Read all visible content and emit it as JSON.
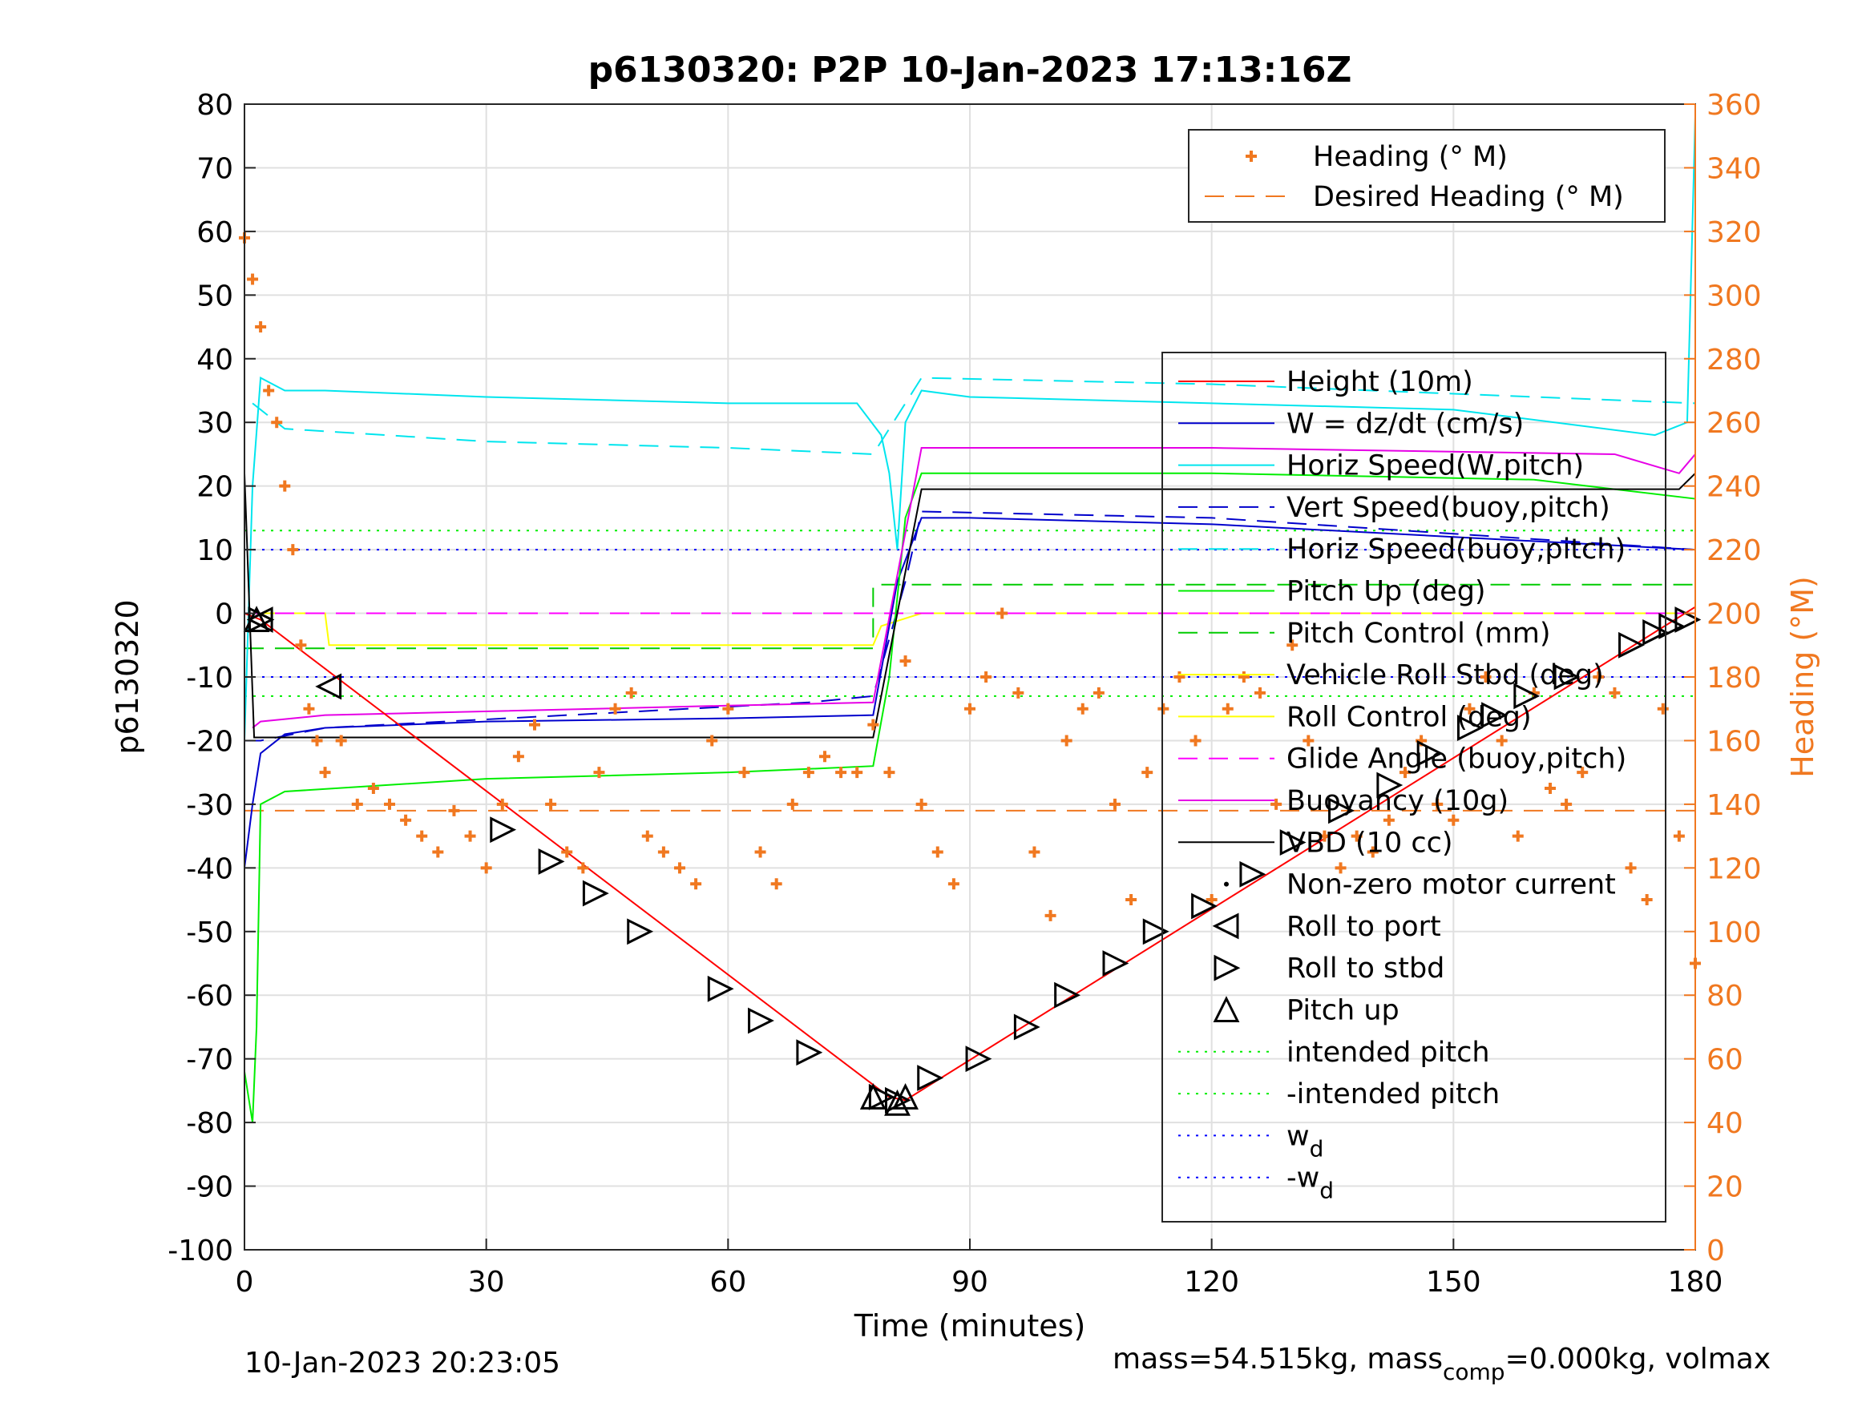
{
  "chart_data": {
    "type": "line",
    "title": "p6130320: P2P 10-Jan-2023 17:13:16Z",
    "xlabel": "Time (minutes)",
    "ylabel": "p6130320",
    "y2label": "Heading (°M)",
    "xlim": [
      0,
      180
    ],
    "ylim": [
      -100,
      80
    ],
    "y2lim": [
      0,
      360
    ],
    "xticks": [
      "0",
      "30",
      "60",
      "90",
      "120",
      "150",
      "180"
    ],
    "yticks": [
      "80",
      "70",
      "60",
      "50",
      "40",
      "30",
      "20",
      "10",
      "0",
      "-10",
      "-20",
      "-30",
      "-40",
      "-50",
      "-60",
      "-70",
      "-80",
      "-90",
      "-100"
    ],
    "y2ticks": [
      "360",
      "340",
      "320",
      "300",
      "280",
      "260",
      "240",
      "220",
      "200",
      "180",
      "160",
      "140",
      "120",
      "100",
      "80",
      "60",
      "40",
      "20",
      "0"
    ],
    "grid": true,
    "colors": {
      "height": "#ff0000",
      "w": "#0000cc",
      "horiz_w": "#00e5ee",
      "vert_buoy": "#0000cc",
      "horiz_buoy": "#00e5ee",
      "pitch_up": "#00ee00",
      "pitch_control": "#00cc00",
      "roll": "#ffff00",
      "roll_control": "#ffff00",
      "glide": "#ff00ff",
      "buoyancy": "#e600e6",
      "vbd": "#000000",
      "heading": "#f07820",
      "intended": "#00ee00",
      "wd": "#0000ff"
    },
    "legend_heading": [
      {
        "label": "Heading (° M)"
      },
      {
        "label": "Desired Heading (° M)"
      }
    ],
    "legend_main": [
      {
        "label": "Height (10m)"
      },
      {
        "label": "W = dz/dt (cm/s)"
      },
      {
        "label": "Horiz Speed(W,pitch)"
      },
      {
        "label": "Vert Speed(buoy,pitch)"
      },
      {
        "label": "Horiz Speed(buoy,pitch)"
      },
      {
        "label": "Pitch Up (deg)"
      },
      {
        "label": "Pitch Control (mm)"
      },
      {
        "label": "Vehicle Roll Stbd (deg)"
      },
      {
        "label": "Roll Control (deg)"
      },
      {
        "label": "Glide Angle (buoy,pitch)"
      },
      {
        "label": "Buoyancy (10g)"
      },
      {
        "label": "VBD (10 cc)"
      },
      {
        "label": "Non-zero motor current"
      },
      {
        "label": "Roll to port"
      },
      {
        "label": "Roll to stbd"
      },
      {
        "label": "Pitch up"
      },
      {
        "label": "intended pitch"
      },
      {
        "label": "-intended pitch"
      },
      {
        "label": "w",
        "sub": "d"
      },
      {
        "label": "-w",
        "sub": "d"
      }
    ],
    "series": {
      "height": {
        "x": [
          0,
          2,
          80,
          82,
          180
        ],
        "y": [
          0,
          -1,
          -76,
          -76.5,
          1
        ]
      },
      "w": {
        "x": [
          0,
          1,
          2,
          5,
          10,
          30,
          60,
          78,
          81,
          84,
          90,
          120,
          150,
          180
        ],
        "y": [
          -40,
          -30,
          -22,
          -19,
          -18,
          -17,
          -16.5,
          -16,
          5,
          15,
          15,
          14,
          12,
          10
        ]
      },
      "horiz_w": {
        "x": [
          0,
          1,
          2,
          5,
          10,
          30,
          60,
          76,
          79,
          80,
          81,
          82,
          84,
          90,
          120,
          150,
          175,
          179,
          180
        ],
        "y": [
          -20,
          20,
          37,
          35,
          35,
          34,
          33,
          33,
          28,
          22,
          10,
          30,
          35,
          34,
          33,
          32,
          28,
          30,
          78
        ]
      },
      "vert_buoy": {
        "x": [
          0,
          2,
          10,
          40,
          70,
          78,
          82,
          84,
          120,
          180
        ],
        "y": [
          -20,
          -20,
          -18,
          -16,
          -14,
          -13,
          5,
          16,
          15,
          10
        ]
      },
      "horiz_buoy": {
        "x": [
          1,
          5,
          30,
          60,
          78,
          84,
          120,
          180
        ],
        "y": [
          33,
          29,
          27,
          26,
          25,
          37,
          36,
          33
        ]
      },
      "pitch_up": {
        "x": [
          0,
          1,
          1.5,
          2,
          5,
          30,
          60,
          78,
          80,
          82,
          84,
          120,
          160,
          180
        ],
        "y": [
          -72,
          -80,
          -65,
          -30,
          -28,
          -26,
          -25,
          -24,
          -10,
          15,
          22,
          22,
          21,
          18
        ]
      },
      "pitch_control": {
        "x": [
          0,
          78,
          78,
          180
        ],
        "y": [
          -5.5,
          -5.5,
          4.5,
          4.5
        ]
      },
      "roll": {
        "x": [
          0,
          10,
          10.5,
          30,
          60,
          78,
          79,
          84,
          90,
          120,
          150,
          180
        ],
        "y": [
          0,
          0,
          -5,
          -5,
          -5,
          -5,
          -2,
          0,
          0,
          0,
          0,
          0
        ]
      },
      "glide": {
        "x": [
          0,
          180
        ],
        "y": [
          0,
          0
        ]
      },
      "buoyancy": {
        "x": [
          1,
          2,
          10,
          60,
          78,
          84,
          120,
          170,
          178,
          180
        ],
        "y": [
          -18,
          -17,
          -16,
          -14.5,
          -14,
          26,
          26,
          25,
          22,
          25
        ]
      },
      "vbd": {
        "x": [
          0,
          1.2,
          2,
          78,
          84,
          120,
          178,
          180
        ],
        "y": [
          22,
          -19.5,
          -19.5,
          -19.5,
          19.5,
          19.5,
          19.5,
          22
        ]
      },
      "intended_pitch": 13,
      "neg_intended_pitch": -13,
      "wd": 10,
      "neg_wd": -10,
      "desired_heading": 138,
      "heading": {
        "x": [
          0,
          1,
          2,
          3,
          4,
          5,
          6,
          7,
          8,
          9,
          10,
          12,
          14,
          16,
          18,
          20,
          22,
          24,
          26,
          28,
          30,
          32,
          34,
          36,
          38,
          40,
          42,
          44,
          46,
          48,
          50,
          52,
          54,
          56,
          58,
          60,
          62,
          64,
          66,
          68,
          70,
          72,
          74,
          76,
          78,
          80,
          82,
          84,
          86,
          88,
          90,
          92,
          94,
          96,
          98,
          100,
          102,
          104,
          106,
          108,
          110,
          112,
          114,
          116,
          118,
          120,
          122,
          124,
          126,
          128,
          130,
          132,
          134,
          136,
          138,
          140,
          142,
          144,
          146,
          148,
          150,
          152,
          154,
          156,
          158,
          160,
          162,
          164,
          166,
          168,
          170,
          172,
          174,
          176,
          178,
          180
        ],
        "y": [
          318,
          305,
          290,
          270,
          260,
          240,
          220,
          190,
          170,
          160,
          150,
          160,
          140,
          145,
          140,
          135,
          130,
          125,
          138,
          130,
          120,
          140,
          155,
          165,
          140,
          125,
          120,
          150,
          170,
          175,
          130,
          125,
          120,
          115,
          160,
          170,
          150,
          125,
          115,
          140,
          150,
          155,
          150,
          150,
          165,
          150,
          185,
          140,
          125,
          115,
          170,
          180,
          200,
          175,
          125,
          105,
          160,
          170,
          175,
          140,
          110,
          150,
          170,
          180,
          160,
          110,
          170,
          180,
          175,
          140,
          190,
          160,
          130,
          120,
          130,
          125,
          135,
          150,
          160,
          140,
          135,
          170,
          180,
          160,
          130,
          175,
          145,
          140,
          150,
          180,
          175,
          120,
          110,
          170,
          130,
          90
        ]
      },
      "roll_port": {
        "x": [
          2,
          10.5
        ],
        "y": [
          -1,
          -11.5
        ]
      },
      "roll_stbd": {
        "x": [
          2,
          32,
          38,
          43.5,
          49,
          59,
          64,
          70,
          79,
          81,
          85,
          91,
          97,
          102,
          108,
          113,
          119,
          125,
          130,
          136,
          142,
          147,
          152,
          155,
          159,
          164,
          172,
          175,
          177,
          179
        ],
        "y": [
          -1,
          -34,
          -39,
          -44,
          -50,
          -59,
          -64,
          -69,
          -76,
          -76.5,
          -73,
          -70,
          -65,
          -60,
          -55,
          -50,
          -46,
          -41,
          -36,
          -31,
          -27,
          -22,
          -18,
          -16,
          -13,
          -10,
          -5,
          -3,
          -2,
          -1
        ]
      },
      "pitch_up_marker": {
        "x": [
          1.5,
          78,
          81,
          82
        ],
        "y": [
          -1,
          -76,
          -77,
          -76
        ]
      }
    }
  },
  "footer": {
    "timestamp": "10-Jan-2023 20:23:05",
    "mass_prefix": "mass=54.515kg, mass",
    "mass_sub": "comp",
    "mass_suffix": "=0.000kg, volmax"
  }
}
